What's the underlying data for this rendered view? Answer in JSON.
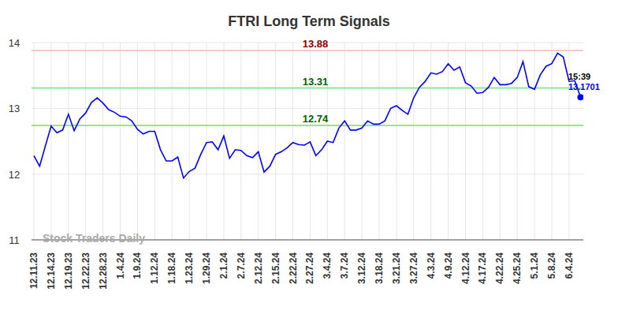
{
  "chart_data": {
    "type": "line",
    "title": "FTRI Long Term Signals",
    "categories": [
      "12.11.23",
      null,
      null,
      "12.14.23",
      null,
      null,
      "12.19.23",
      null,
      null,
      "12.22.23",
      null,
      null,
      "12.28.23",
      null,
      null,
      "1.4.24",
      null,
      null,
      "1.9.24",
      null,
      null,
      "1.12.24",
      null,
      null,
      "1.18.24",
      null,
      null,
      "1.23.24",
      null,
      null,
      "1.29.24",
      null,
      null,
      "2.1.24",
      null,
      null,
      "2.7.24",
      null,
      null,
      "2.12.24",
      null,
      null,
      "2.15.24",
      null,
      null,
      "2.22.24",
      null,
      null,
      "2.27.24",
      null,
      null,
      "3.4.24",
      null,
      null,
      "3.7.24",
      null,
      null,
      "3.12.24",
      null,
      null,
      "3.18.24",
      null,
      null,
      "3.21.24",
      null,
      null,
      "3.27.24",
      null,
      null,
      "4.3.24",
      null,
      null,
      "4.9.24",
      null,
      null,
      "4.12.24",
      null,
      null,
      "4.17.24",
      null,
      null,
      "4.22.24",
      null,
      null,
      "4.25.24",
      null,
      null,
      "5.1.24",
      null,
      null,
      "5.8.24",
      null,
      null,
      "6.4.24",
      null,
      null
    ],
    "values": [
      12.28,
      12.12,
      12.43,
      12.73,
      12.63,
      12.67,
      12.91,
      12.66,
      12.84,
      12.93,
      13.09,
      13.16,
      13.08,
      12.98,
      12.94,
      12.88,
      12.87,
      12.81,
      12.68,
      12.61,
      12.65,
      12.65,
      12.37,
      12.2,
      12.2,
      12.26,
      11.94,
      12.04,
      12.09,
      12.3,
      12.48,
      12.49,
      12.37,
      12.58,
      12.24,
      12.37,
      12.36,
      12.28,
      12.25,
      12.34,
      12.03,
      12.12,
      12.3,
      12.34,
      12.4,
      12.48,
      12.45,
      12.44,
      12.49,
      12.28,
      12.37,
      12.5,
      12.48,
      12.7,
      12.81,
      12.67,
      12.67,
      12.7,
      12.81,
      12.76,
      12.76,
      12.81,
      13.0,
      13.04,
      12.97,
      12.91,
      13.16,
      13.32,
      13.41,
      13.54,
      13.52,
      13.56,
      13.68,
      13.58,
      13.63,
      13.39,
      13.34,
      13.23,
      13.24,
      13.32,
      13.47,
      13.36,
      13.36,
      13.38,
      13.47,
      13.71,
      13.33,
      13.29,
      13.51,
      13.64,
      13.68,
      13.84,
      13.78,
      13.41,
      13.42,
      13.1701
    ],
    "color": "#0000ff",
    "ylim": [
      11,
      14
    ],
    "yticks": [
      11,
      12,
      13,
      14
    ],
    "grid": true,
    "levels": [
      {
        "value": 13.88,
        "color": "#8b0000"
      },
      {
        "value": 13.31,
        "color": "#006400"
      },
      {
        "value": 12.74,
        "color": "#006400"
      }
    ],
    "last_time": "15:39",
    "last_value": 13.1701,
    "watermark": "Stock Traders Daily"
  }
}
